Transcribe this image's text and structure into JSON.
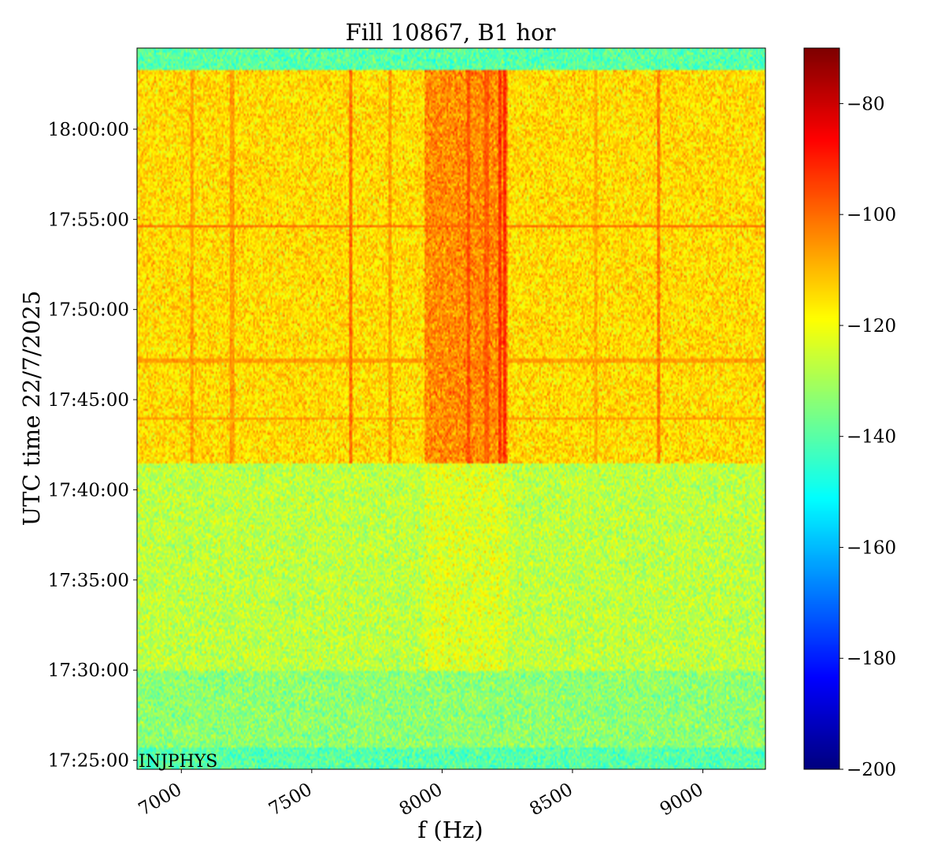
{
  "chart_data": {
    "type": "heatmap",
    "title": "Fill 10867, B1 hor",
    "xlabel": "f (Hz)",
    "ylabel": "UTC time 22/7/2025",
    "xlim": [
      6830,
      9240
    ],
    "ylim": [
      "17:24:30",
      "18:04:30"
    ],
    "x_ticks": [
      {
        "value": 7000,
        "label": "7000"
      },
      {
        "value": 7500,
        "label": "7500"
      },
      {
        "value": 8000,
        "label": "8000"
      },
      {
        "value": 8500,
        "label": "8500"
      },
      {
        "value": 9000,
        "label": "9000"
      }
    ],
    "y_ticks": [
      {
        "value": "17:25:00",
        "label": "17:25:00"
      },
      {
        "value": "17:30:00",
        "label": "17:30:00"
      },
      {
        "value": "17:35:00",
        "label": "17:35:00"
      },
      {
        "value": "17:40:00",
        "label": "17:40:00"
      },
      {
        "value": "17:45:00",
        "label": "17:45:00"
      },
      {
        "value": "17:50:00",
        "label": "17:50:00"
      },
      {
        "value": "17:55:00",
        "label": "17:55:00"
      },
      {
        "value": "18:00:00",
        "label": "18:00:00"
      }
    ],
    "colorbar": {
      "colormap": "jet",
      "range": [
        -200,
        -70
      ],
      "ticks": [
        {
          "value": -80,
          "label": "−80"
        },
        {
          "value": -100,
          "label": "−100"
        },
        {
          "value": -120,
          "label": "−120"
        },
        {
          "value": -140,
          "label": "−140"
        },
        {
          "value": -160,
          "label": "−160"
        },
        {
          "value": -180,
          "label": "−180"
        },
        {
          "value": -200,
          "label": "−200"
        }
      ]
    },
    "annotation": "INJPHYS",
    "regions": [
      {
        "t_start": "17:24:30",
        "t_end": "17:25:40",
        "level": -140
      },
      {
        "t_start": "17:25:40",
        "t_end": "17:30:00",
        "level": -133
      },
      {
        "t_start": "17:30:00",
        "t_end": "17:41:30",
        "level": -127
      },
      {
        "t_start": "17:41:30",
        "t_end": "18:03:20",
        "level": -114
      },
      {
        "t_start": "18:03:20",
        "t_end": "18:04:30",
        "level": -140
      }
    ],
    "vertical_lines": [
      {
        "f": 7040,
        "level": -106
      },
      {
        "f": 7195,
        "level": -106
      },
      {
        "f": 7650,
        "level": -100
      },
      {
        "f": 7800,
        "level": -106
      },
      {
        "f": 8100,
        "level": -96
      },
      {
        "f": 8170,
        "level": -98
      },
      {
        "f": 8220,
        "level": -92
      },
      {
        "f": 8240,
        "level": -92
      },
      {
        "f": 8590,
        "level": -108
      },
      {
        "f": 8830,
        "level": -102
      }
    ],
    "horizontal_lines": [
      {
        "t": "17:54:40",
        "level": -100
      },
      {
        "t": "17:47:10",
        "level": -106
      },
      {
        "t": "17:44:00",
        "level": -106
      }
    ]
  }
}
